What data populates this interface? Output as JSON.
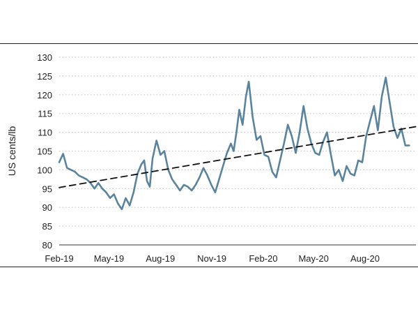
{
  "chart_data": {
    "type": "line",
    "title": "",
    "xlabel": "",
    "ylabel": "US cents/lb",
    "ylim": [
      80,
      130
    ],
    "yticks": [
      80,
      85,
      90,
      95,
      100,
      105,
      110,
      115,
      120,
      125,
      130
    ],
    "grid": "horizontal-dotted",
    "xrange": [
      "2019-02-01",
      "2020-10-31"
    ],
    "xticks": [
      {
        "label": "Feb-19",
        "date": "2019-02-01"
      },
      {
        "label": "May-19",
        "date": "2019-05-01"
      },
      {
        "label": "Aug-19",
        "date": "2019-08-01"
      },
      {
        "label": "Nov-19",
        "date": "2019-11-01"
      },
      {
        "label": "Feb-20",
        "date": "2020-02-01"
      },
      {
        "label": "May-20",
        "date": "2020-05-01"
      },
      {
        "label": "Aug-20",
        "date": "2020-08-01"
      }
    ],
    "series": [
      {
        "color": "#5a849d",
        "points": [
          [
            "2019-02-01",
            102
          ],
          [
            "2019-02-08",
            104.3
          ],
          [
            "2019-02-15",
            100.5
          ],
          [
            "2019-02-22",
            100
          ],
          [
            "2019-03-01",
            99.5
          ],
          [
            "2019-03-08",
            98.5
          ],
          [
            "2019-03-15",
            98
          ],
          [
            "2019-03-22",
            97.5
          ],
          [
            "2019-03-29",
            96.5
          ],
          [
            "2019-04-05",
            95
          ],
          [
            "2019-04-12",
            96.5
          ],
          [
            "2019-04-19",
            95
          ],
          [
            "2019-04-26",
            94
          ],
          [
            "2019-05-03",
            92.5
          ],
          [
            "2019-05-10",
            93.5
          ],
          [
            "2019-05-17",
            91
          ],
          [
            "2019-05-24",
            89.5
          ],
          [
            "2019-05-31",
            92.5
          ],
          [
            "2019-06-07",
            90.5
          ],
          [
            "2019-06-14",
            94
          ],
          [
            "2019-06-21",
            99
          ],
          [
            "2019-06-28",
            101.5
          ],
          [
            "2019-07-03",
            102.5
          ],
          [
            "2019-07-08",
            97
          ],
          [
            "2019-07-13",
            95.5
          ],
          [
            "2019-07-18",
            103
          ],
          [
            "2019-07-25",
            107.8
          ],
          [
            "2019-08-01",
            104
          ],
          [
            "2019-08-08",
            105
          ],
          [
            "2019-08-15",
            100
          ],
          [
            "2019-08-22",
            97.5
          ],
          [
            "2019-08-29",
            96
          ],
          [
            "2019-09-05",
            94.5
          ],
          [
            "2019-09-12",
            96
          ],
          [
            "2019-09-19",
            95.5
          ],
          [
            "2019-09-26",
            94.5
          ],
          [
            "2019-10-03",
            96
          ],
          [
            "2019-10-10",
            98
          ],
          [
            "2019-10-17",
            100.5
          ],
          [
            "2019-10-24",
            98.5
          ],
          [
            "2019-10-31",
            96
          ],
          [
            "2019-11-07",
            94
          ],
          [
            "2019-11-14",
            97.5
          ],
          [
            "2019-11-21",
            101
          ],
          [
            "2019-11-28",
            104.5
          ],
          [
            "2019-12-05",
            107
          ],
          [
            "2019-12-10",
            105
          ],
          [
            "2019-12-15",
            110
          ],
          [
            "2019-12-20",
            116
          ],
          [
            "2019-12-26",
            112
          ],
          [
            "2020-01-01",
            119.5
          ],
          [
            "2020-01-06",
            123.5
          ],
          [
            "2020-01-13",
            114
          ],
          [
            "2020-01-20",
            108
          ],
          [
            "2020-01-27",
            109
          ],
          [
            "2020-02-03",
            104
          ],
          [
            "2020-02-10",
            103.5
          ],
          [
            "2020-02-17",
            99.5
          ],
          [
            "2020-02-24",
            98
          ],
          [
            "2020-03-02",
            102.5
          ],
          [
            "2020-03-09",
            107
          ],
          [
            "2020-03-16",
            112
          ],
          [
            "2020-03-23",
            109
          ],
          [
            "2020-03-30",
            104.5
          ],
          [
            "2020-04-06",
            110
          ],
          [
            "2020-04-13",
            117
          ],
          [
            "2020-04-20",
            111
          ],
          [
            "2020-04-27",
            107
          ],
          [
            "2020-05-04",
            104.5
          ],
          [
            "2020-05-11",
            104
          ],
          [
            "2020-05-18",
            107.5
          ],
          [
            "2020-05-25",
            110
          ],
          [
            "2020-06-01",
            104
          ],
          [
            "2020-06-08",
            98.5
          ],
          [
            "2020-06-15",
            100
          ],
          [
            "2020-06-22",
            97
          ],
          [
            "2020-06-29",
            101
          ],
          [
            "2020-07-06",
            99
          ],
          [
            "2020-07-13",
            98.5
          ],
          [
            "2020-07-20",
            102.5
          ],
          [
            "2020-07-27",
            102
          ],
          [
            "2020-08-03",
            109
          ],
          [
            "2020-08-10",
            113
          ],
          [
            "2020-08-17",
            117
          ],
          [
            "2020-08-24",
            110.5
          ],
          [
            "2020-08-31",
            119.5
          ],
          [
            "2020-09-07",
            124.6
          ],
          [
            "2020-09-14",
            118
          ],
          [
            "2020-09-21",
            111.5
          ],
          [
            "2020-09-28",
            108.5
          ],
          [
            "2020-10-05",
            111
          ],
          [
            "2020-10-12",
            106.5
          ],
          [
            "2020-10-19",
            106.5
          ]
        ]
      },
      {
        "style": "dashed-trend",
        "color": "#111111",
        "points": [
          [
            "2019-02-01",
            95.3
          ],
          [
            "2020-10-31",
            111.5
          ]
        ]
      }
    ]
  }
}
